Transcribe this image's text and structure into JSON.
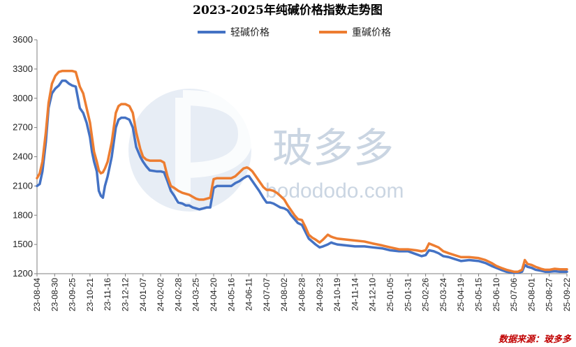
{
  "chart_data": {
    "type": "line",
    "title": "2023-2025年纯碱价格指数走势图",
    "source": "数据来源：玻多多",
    "watermark": {
      "brand": "玻多多",
      "url": "bodododo.com"
    },
    "ylim": [
      1200,
      3600
    ],
    "yticks": [
      1200,
      1500,
      1800,
      2100,
      2400,
      2700,
      3000,
      3300,
      3600
    ],
    "legend_position": "top-center",
    "grid": false,
    "x_dates": [
      "2023-08-04",
      "2023-08-30",
      "2023-09-25",
      "2023-10-21",
      "2023-11-16",
      "2023-12-12",
      "2024-01-07",
      "2024-02-02",
      "2024-02-28",
      "2024-03-25",
      "2024-04-20",
      "2024-05-16",
      "2024-06-11",
      "2024-07-07",
      "2024-08-02",
      "2024-08-28",
      "2024-09-23",
      "2024-10-19",
      "2024-11-14",
      "2024-12-10",
      "2025-01-05",
      "2025-01-31",
      "2025-02-26",
      "2025-03-24",
      "2025-04-19",
      "2025-05-15",
      "2025-06-10",
      "2025-07-06",
      "2025-08-01",
      "2025-08-27",
      "2025-09-22"
    ],
    "x_tick_labels": [
      "23-08-04",
      "23-08-30",
      "23-09-25",
      "23-10-21",
      "23-11-16",
      "23-12-12",
      "24-01-07",
      "24-02-02",
      "24-02-28",
      "24-03-25",
      "24-04-20",
      "24-05-16",
      "24-06-11",
      "24-07-07",
      "24-08-02",
      "24-08-28",
      "24-09-23",
      "24-10-19",
      "24-11-14",
      "24-12-10",
      "25-01-05",
      "25-01-31",
      "25-02-26",
      "25-03-24",
      "25-04-19",
      "25-05-15",
      "25-06-10",
      "25-07-06",
      "25-08-01",
      "25-08-27",
      "25-09-22"
    ],
    "series": [
      {
        "name": "轻碱价格",
        "color": "#4472c4",
        "points": [
          [
            "2023-08-04",
            2100
          ],
          [
            "2023-08-08",
            2120
          ],
          [
            "2023-08-12",
            2250
          ],
          [
            "2023-08-17",
            2550
          ],
          [
            "2023-08-21",
            2900
          ],
          [
            "2023-08-26",
            3050
          ],
          [
            "2023-08-31",
            3100
          ],
          [
            "2023-09-05",
            3130
          ],
          [
            "2023-09-10",
            3180
          ],
          [
            "2023-09-15",
            3180
          ],
          [
            "2023-09-20",
            3150
          ],
          [
            "2023-09-25",
            3130
          ],
          [
            "2023-09-30",
            3120
          ],
          [
            "2023-10-06",
            2900
          ],
          [
            "2023-10-11",
            2850
          ],
          [
            "2023-10-16",
            2750
          ],
          [
            "2023-10-21",
            2600
          ],
          [
            "2023-10-24",
            2450
          ],
          [
            "2023-10-27",
            2350
          ],
          [
            "2023-10-31",
            2250
          ],
          [
            "2023-11-03",
            2050
          ],
          [
            "2023-11-06",
            2000
          ],
          [
            "2023-11-09",
            1980
          ],
          [
            "2023-11-12",
            2100
          ],
          [
            "2023-11-16",
            2200
          ],
          [
            "2023-11-19",
            2300
          ],
          [
            "2023-11-22",
            2400
          ],
          [
            "2023-11-25",
            2550
          ],
          [
            "2023-11-28",
            2700
          ],
          [
            "2023-12-02",
            2780
          ],
          [
            "2023-12-06",
            2800
          ],
          [
            "2023-12-12",
            2800
          ],
          [
            "2023-12-18",
            2780
          ],
          [
            "2023-12-23",
            2700
          ],
          [
            "2023-12-28",
            2500
          ],
          [
            "2024-01-03",
            2400
          ],
          [
            "2024-01-07",
            2350
          ],
          [
            "2024-01-12",
            2300
          ],
          [
            "2024-01-17",
            2260
          ],
          [
            "2024-01-27",
            2250
          ],
          [
            "2024-02-02",
            2250
          ],
          [
            "2024-02-07",
            2240
          ],
          [
            "2024-02-12",
            2150
          ],
          [
            "2024-02-17",
            2050
          ],
          [
            "2024-02-22",
            2000
          ],
          [
            "2024-02-26",
            1950
          ],
          [
            "2024-02-28",
            1930
          ],
          [
            "2024-03-05",
            1920
          ],
          [
            "2024-03-10",
            1900
          ],
          [
            "2024-03-15",
            1900
          ],
          [
            "2024-03-20",
            1880
          ],
          [
            "2024-03-25",
            1870
          ],
          [
            "2024-03-30",
            1860
          ],
          [
            "2024-04-05",
            1870
          ],
          [
            "2024-04-10",
            1880
          ],
          [
            "2024-04-15",
            1880
          ],
          [
            "2024-04-18",
            2000
          ],
          [
            "2024-04-20",
            2080
          ],
          [
            "2024-04-25",
            2100
          ],
          [
            "2024-05-05",
            2100
          ],
          [
            "2024-05-16",
            2100
          ],
          [
            "2024-05-22",
            2130
          ],
          [
            "2024-05-28",
            2150
          ],
          [
            "2024-06-03",
            2180
          ],
          [
            "2024-06-08",
            2200
          ],
          [
            "2024-06-11",
            2200
          ],
          [
            "2024-06-16",
            2150
          ],
          [
            "2024-06-21",
            2100
          ],
          [
            "2024-06-26",
            2050
          ],
          [
            "2024-07-02",
            1980
          ],
          [
            "2024-07-07",
            1930
          ],
          [
            "2024-07-12",
            1930
          ],
          [
            "2024-07-17",
            1920
          ],
          [
            "2024-07-22",
            1900
          ],
          [
            "2024-07-27",
            1880
          ],
          [
            "2024-08-02",
            1870
          ],
          [
            "2024-08-07",
            1850
          ],
          [
            "2024-08-12",
            1800
          ],
          [
            "2024-08-17",
            1760
          ],
          [
            "2024-08-22",
            1720
          ],
          [
            "2024-08-28",
            1700
          ],
          [
            "2024-09-02",
            1630
          ],
          [
            "2024-09-07",
            1560
          ],
          [
            "2024-09-12",
            1530
          ],
          [
            "2024-09-17",
            1500
          ],
          [
            "2024-09-23",
            1470
          ],
          [
            "2024-09-28",
            1480
          ],
          [
            "2024-10-05",
            1500
          ],
          [
            "2024-10-10",
            1520
          ],
          [
            "2024-10-14",
            1510
          ],
          [
            "2024-10-19",
            1500
          ],
          [
            "2024-11-01",
            1490
          ],
          [
            "2024-11-14",
            1480
          ],
          [
            "2024-11-28",
            1480
          ],
          [
            "2024-12-10",
            1470
          ],
          [
            "2024-12-24",
            1460
          ],
          [
            "2025-01-05",
            1440
          ],
          [
            "2025-01-18",
            1430
          ],
          [
            "2025-01-31",
            1430
          ],
          [
            "2025-02-12",
            1400
          ],
          [
            "2025-02-20",
            1380
          ],
          [
            "2025-02-26",
            1390
          ],
          [
            "2025-03-03",
            1440
          ],
          [
            "2025-03-10",
            1430
          ],
          [
            "2025-03-17",
            1410
          ],
          [
            "2025-03-24",
            1380
          ],
          [
            "2025-04-01",
            1370
          ],
          [
            "2025-04-10",
            1350
          ],
          [
            "2025-04-19",
            1330
          ],
          [
            "2025-05-01",
            1340
          ],
          [
            "2025-05-15",
            1330
          ],
          [
            "2025-05-25",
            1310
          ],
          [
            "2025-06-03",
            1280
          ],
          [
            "2025-06-10",
            1260
          ],
          [
            "2025-06-17",
            1240
          ],
          [
            "2025-06-25",
            1220
          ],
          [
            "2025-07-06",
            1210
          ],
          [
            "2025-07-12",
            1210
          ],
          [
            "2025-07-18",
            1220
          ],
          [
            "2025-07-22",
            1290
          ],
          [
            "2025-07-26",
            1270
          ],
          [
            "2025-08-01",
            1260
          ],
          [
            "2025-08-07",
            1240
          ],
          [
            "2025-08-15",
            1230
          ],
          [
            "2025-08-21",
            1220
          ],
          [
            "2025-08-27",
            1220
          ],
          [
            "2025-09-04",
            1225
          ],
          [
            "2025-09-12",
            1220
          ],
          [
            "2025-09-22",
            1220
          ]
        ]
      },
      {
        "name": "重碱价格",
        "color": "#ed7d31",
        "points": [
          [
            "2023-08-04",
            2180
          ],
          [
            "2023-08-08",
            2230
          ],
          [
            "2023-08-12",
            2350
          ],
          [
            "2023-08-17",
            2650
          ],
          [
            "2023-08-21",
            2950
          ],
          [
            "2023-08-26",
            3150
          ],
          [
            "2023-08-31",
            3230
          ],
          [
            "2023-09-05",
            3270
          ],
          [
            "2023-09-10",
            3280
          ],
          [
            "2023-09-15",
            3280
          ],
          [
            "2023-09-20",
            3280
          ],
          [
            "2023-09-25",
            3280
          ],
          [
            "2023-09-30",
            3270
          ],
          [
            "2023-10-06",
            3120
          ],
          [
            "2023-10-11",
            3050
          ],
          [
            "2023-10-16",
            2900
          ],
          [
            "2023-10-21",
            2750
          ],
          [
            "2023-10-24",
            2600
          ],
          [
            "2023-10-27",
            2450
          ],
          [
            "2023-10-31",
            2350
          ],
          [
            "2023-11-03",
            2260
          ],
          [
            "2023-11-06",
            2230
          ],
          [
            "2023-11-09",
            2240
          ],
          [
            "2023-11-12",
            2280
          ],
          [
            "2023-11-16",
            2350
          ],
          [
            "2023-11-19",
            2450
          ],
          [
            "2023-11-22",
            2550
          ],
          [
            "2023-11-25",
            2700
          ],
          [
            "2023-11-28",
            2850
          ],
          [
            "2023-12-02",
            2920
          ],
          [
            "2023-12-06",
            2940
          ],
          [
            "2023-12-12",
            2940
          ],
          [
            "2023-12-18",
            2920
          ],
          [
            "2023-12-23",
            2850
          ],
          [
            "2023-12-28",
            2650
          ],
          [
            "2024-01-03",
            2480
          ],
          [
            "2024-01-07",
            2400
          ],
          [
            "2024-01-12",
            2370
          ],
          [
            "2024-01-17",
            2360
          ],
          [
            "2024-01-27",
            2360
          ],
          [
            "2024-02-02",
            2360
          ],
          [
            "2024-02-07",
            2340
          ],
          [
            "2024-02-12",
            2200
          ],
          [
            "2024-02-17",
            2100
          ],
          [
            "2024-02-22",
            2080
          ],
          [
            "2024-02-26",
            2060
          ],
          [
            "2024-02-28",
            2050
          ],
          [
            "2024-03-05",
            2030
          ],
          [
            "2024-03-10",
            2020
          ],
          [
            "2024-03-15",
            2010
          ],
          [
            "2024-03-20",
            1990
          ],
          [
            "2024-03-25",
            1970
          ],
          [
            "2024-03-30",
            1960
          ],
          [
            "2024-04-05",
            1960
          ],
          [
            "2024-04-10",
            1970
          ],
          [
            "2024-04-15",
            1980
          ],
          [
            "2024-04-18",
            2100
          ],
          [
            "2024-04-20",
            2170
          ],
          [
            "2024-04-25",
            2180
          ],
          [
            "2024-05-05",
            2180
          ],
          [
            "2024-05-16",
            2180
          ],
          [
            "2024-05-22",
            2200
          ],
          [
            "2024-05-28",
            2240
          ],
          [
            "2024-06-03",
            2280
          ],
          [
            "2024-06-08",
            2290
          ],
          [
            "2024-06-11",
            2280
          ],
          [
            "2024-06-16",
            2250
          ],
          [
            "2024-06-21",
            2200
          ],
          [
            "2024-06-26",
            2150
          ],
          [
            "2024-07-02",
            2090
          ],
          [
            "2024-07-07",
            2060
          ],
          [
            "2024-07-12",
            2060
          ],
          [
            "2024-07-17",
            2050
          ],
          [
            "2024-07-22",
            2030
          ],
          [
            "2024-07-27",
            2000
          ],
          [
            "2024-08-02",
            1960
          ],
          [
            "2024-08-07",
            1900
          ],
          [
            "2024-08-12",
            1850
          ],
          [
            "2024-08-17",
            1800
          ],
          [
            "2024-08-22",
            1760
          ],
          [
            "2024-08-28",
            1750
          ],
          [
            "2024-09-02",
            1680
          ],
          [
            "2024-09-07",
            1600
          ],
          [
            "2024-09-12",
            1570
          ],
          [
            "2024-09-17",
            1550
          ],
          [
            "2024-09-23",
            1520
          ],
          [
            "2024-09-28",
            1550
          ],
          [
            "2024-10-05",
            1600
          ],
          [
            "2024-10-10",
            1580
          ],
          [
            "2024-10-14",
            1570
          ],
          [
            "2024-10-19",
            1560
          ],
          [
            "2024-11-01",
            1550
          ],
          [
            "2024-11-14",
            1540
          ],
          [
            "2024-11-28",
            1530
          ],
          [
            "2024-12-10",
            1510
          ],
          [
            "2024-12-24",
            1490
          ],
          [
            "2025-01-05",
            1470
          ],
          [
            "2025-01-18",
            1450
          ],
          [
            "2025-01-31",
            1450
          ],
          [
            "2025-02-12",
            1440
          ],
          [
            "2025-02-20",
            1430
          ],
          [
            "2025-02-26",
            1440
          ],
          [
            "2025-03-03",
            1510
          ],
          [
            "2025-03-10",
            1490
          ],
          [
            "2025-03-17",
            1470
          ],
          [
            "2025-03-24",
            1430
          ],
          [
            "2025-04-01",
            1410
          ],
          [
            "2025-04-10",
            1390
          ],
          [
            "2025-04-19",
            1370
          ],
          [
            "2025-05-01",
            1370
          ],
          [
            "2025-05-15",
            1360
          ],
          [
            "2025-05-25",
            1340
          ],
          [
            "2025-06-03",
            1310
          ],
          [
            "2025-06-10",
            1280
          ],
          [
            "2025-06-17",
            1260
          ],
          [
            "2025-06-25",
            1240
          ],
          [
            "2025-07-06",
            1220
          ],
          [
            "2025-07-12",
            1220
          ],
          [
            "2025-07-18",
            1240
          ],
          [
            "2025-07-22",
            1340
          ],
          [
            "2025-07-26",
            1300
          ],
          [
            "2025-08-01",
            1290
          ],
          [
            "2025-08-07",
            1270
          ],
          [
            "2025-08-15",
            1250
          ],
          [
            "2025-08-21",
            1240
          ],
          [
            "2025-08-27",
            1240
          ],
          [
            "2025-09-04",
            1250
          ],
          [
            "2025-09-12",
            1245
          ],
          [
            "2025-09-22",
            1245
          ]
        ]
      }
    ]
  }
}
